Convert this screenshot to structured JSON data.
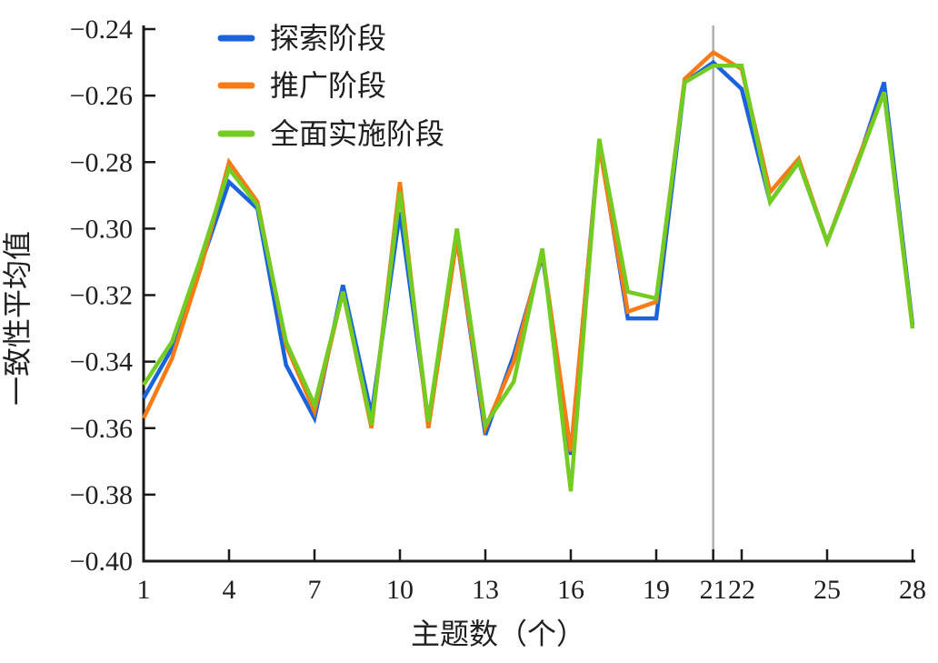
{
  "chart_data": {
    "type": "line",
    "title": "",
    "xlabel": "主题数（个）",
    "ylabel": "一致性平均值",
    "xlim": [
      1,
      28
    ],
    "ylim": [
      -0.4,
      -0.24
    ],
    "xticks": [
      1,
      4,
      7,
      10,
      13,
      16,
      19,
      21,
      22,
      25,
      28
    ],
    "yticks": [
      -0.4,
      -0.38,
      -0.36,
      -0.34,
      -0.32,
      -0.3,
      -0.28,
      -0.26,
      -0.24
    ],
    "grid": false,
    "legend_position": "upper-left-inside",
    "vline_x": 21,
    "vline_color": "#b0b0b0",
    "axis_color": "#1a1a1a",
    "x": [
      1,
      2,
      3,
      4,
      5,
      6,
      7,
      8,
      9,
      10,
      11,
      12,
      13,
      14,
      15,
      16,
      17,
      18,
      19,
      20,
      21,
      22,
      23,
      24,
      25,
      26,
      27,
      28
    ],
    "series": [
      {
        "name": "探索阶段",
        "color": "#1b63dd",
        "values": [
          -0.351,
          -0.336,
          -0.311,
          -0.286,
          -0.294,
          -0.341,
          -0.357,
          -0.317,
          -0.356,
          -0.295,
          -0.358,
          -0.303,
          -0.362,
          -0.338,
          -0.308,
          -0.368,
          -0.274,
          -0.327,
          -0.327,
          -0.256,
          -0.25,
          -0.258,
          -0.292,
          -0.28,
          -0.304,
          -0.282,
          -0.256,
          -0.329
        ]
      },
      {
        "name": "推广阶段",
        "color": "#f97b16",
        "values": [
          -0.357,
          -0.339,
          -0.312,
          -0.28,
          -0.292,
          -0.335,
          -0.355,
          -0.319,
          -0.36,
          -0.286,
          -0.36,
          -0.303,
          -0.36,
          -0.34,
          -0.307,
          -0.367,
          -0.275,
          -0.325,
          -0.322,
          -0.255,
          -0.247,
          -0.252,
          -0.289,
          -0.279,
          -0.304,
          -0.281,
          -0.259,
          -0.33
        ]
      },
      {
        "name": "全面实施阶段",
        "color": "#72cc22",
        "values": [
          -0.347,
          -0.334,
          -0.309,
          -0.282,
          -0.293,
          -0.334,
          -0.353,
          -0.319,
          -0.359,
          -0.289,
          -0.358,
          -0.3,
          -0.359,
          -0.346,
          -0.306,
          -0.379,
          -0.273,
          -0.319,
          -0.321,
          -0.256,
          -0.251,
          -0.251,
          -0.292,
          -0.28,
          -0.304,
          -0.282,
          -0.259,
          -0.33
        ]
      }
    ]
  }
}
